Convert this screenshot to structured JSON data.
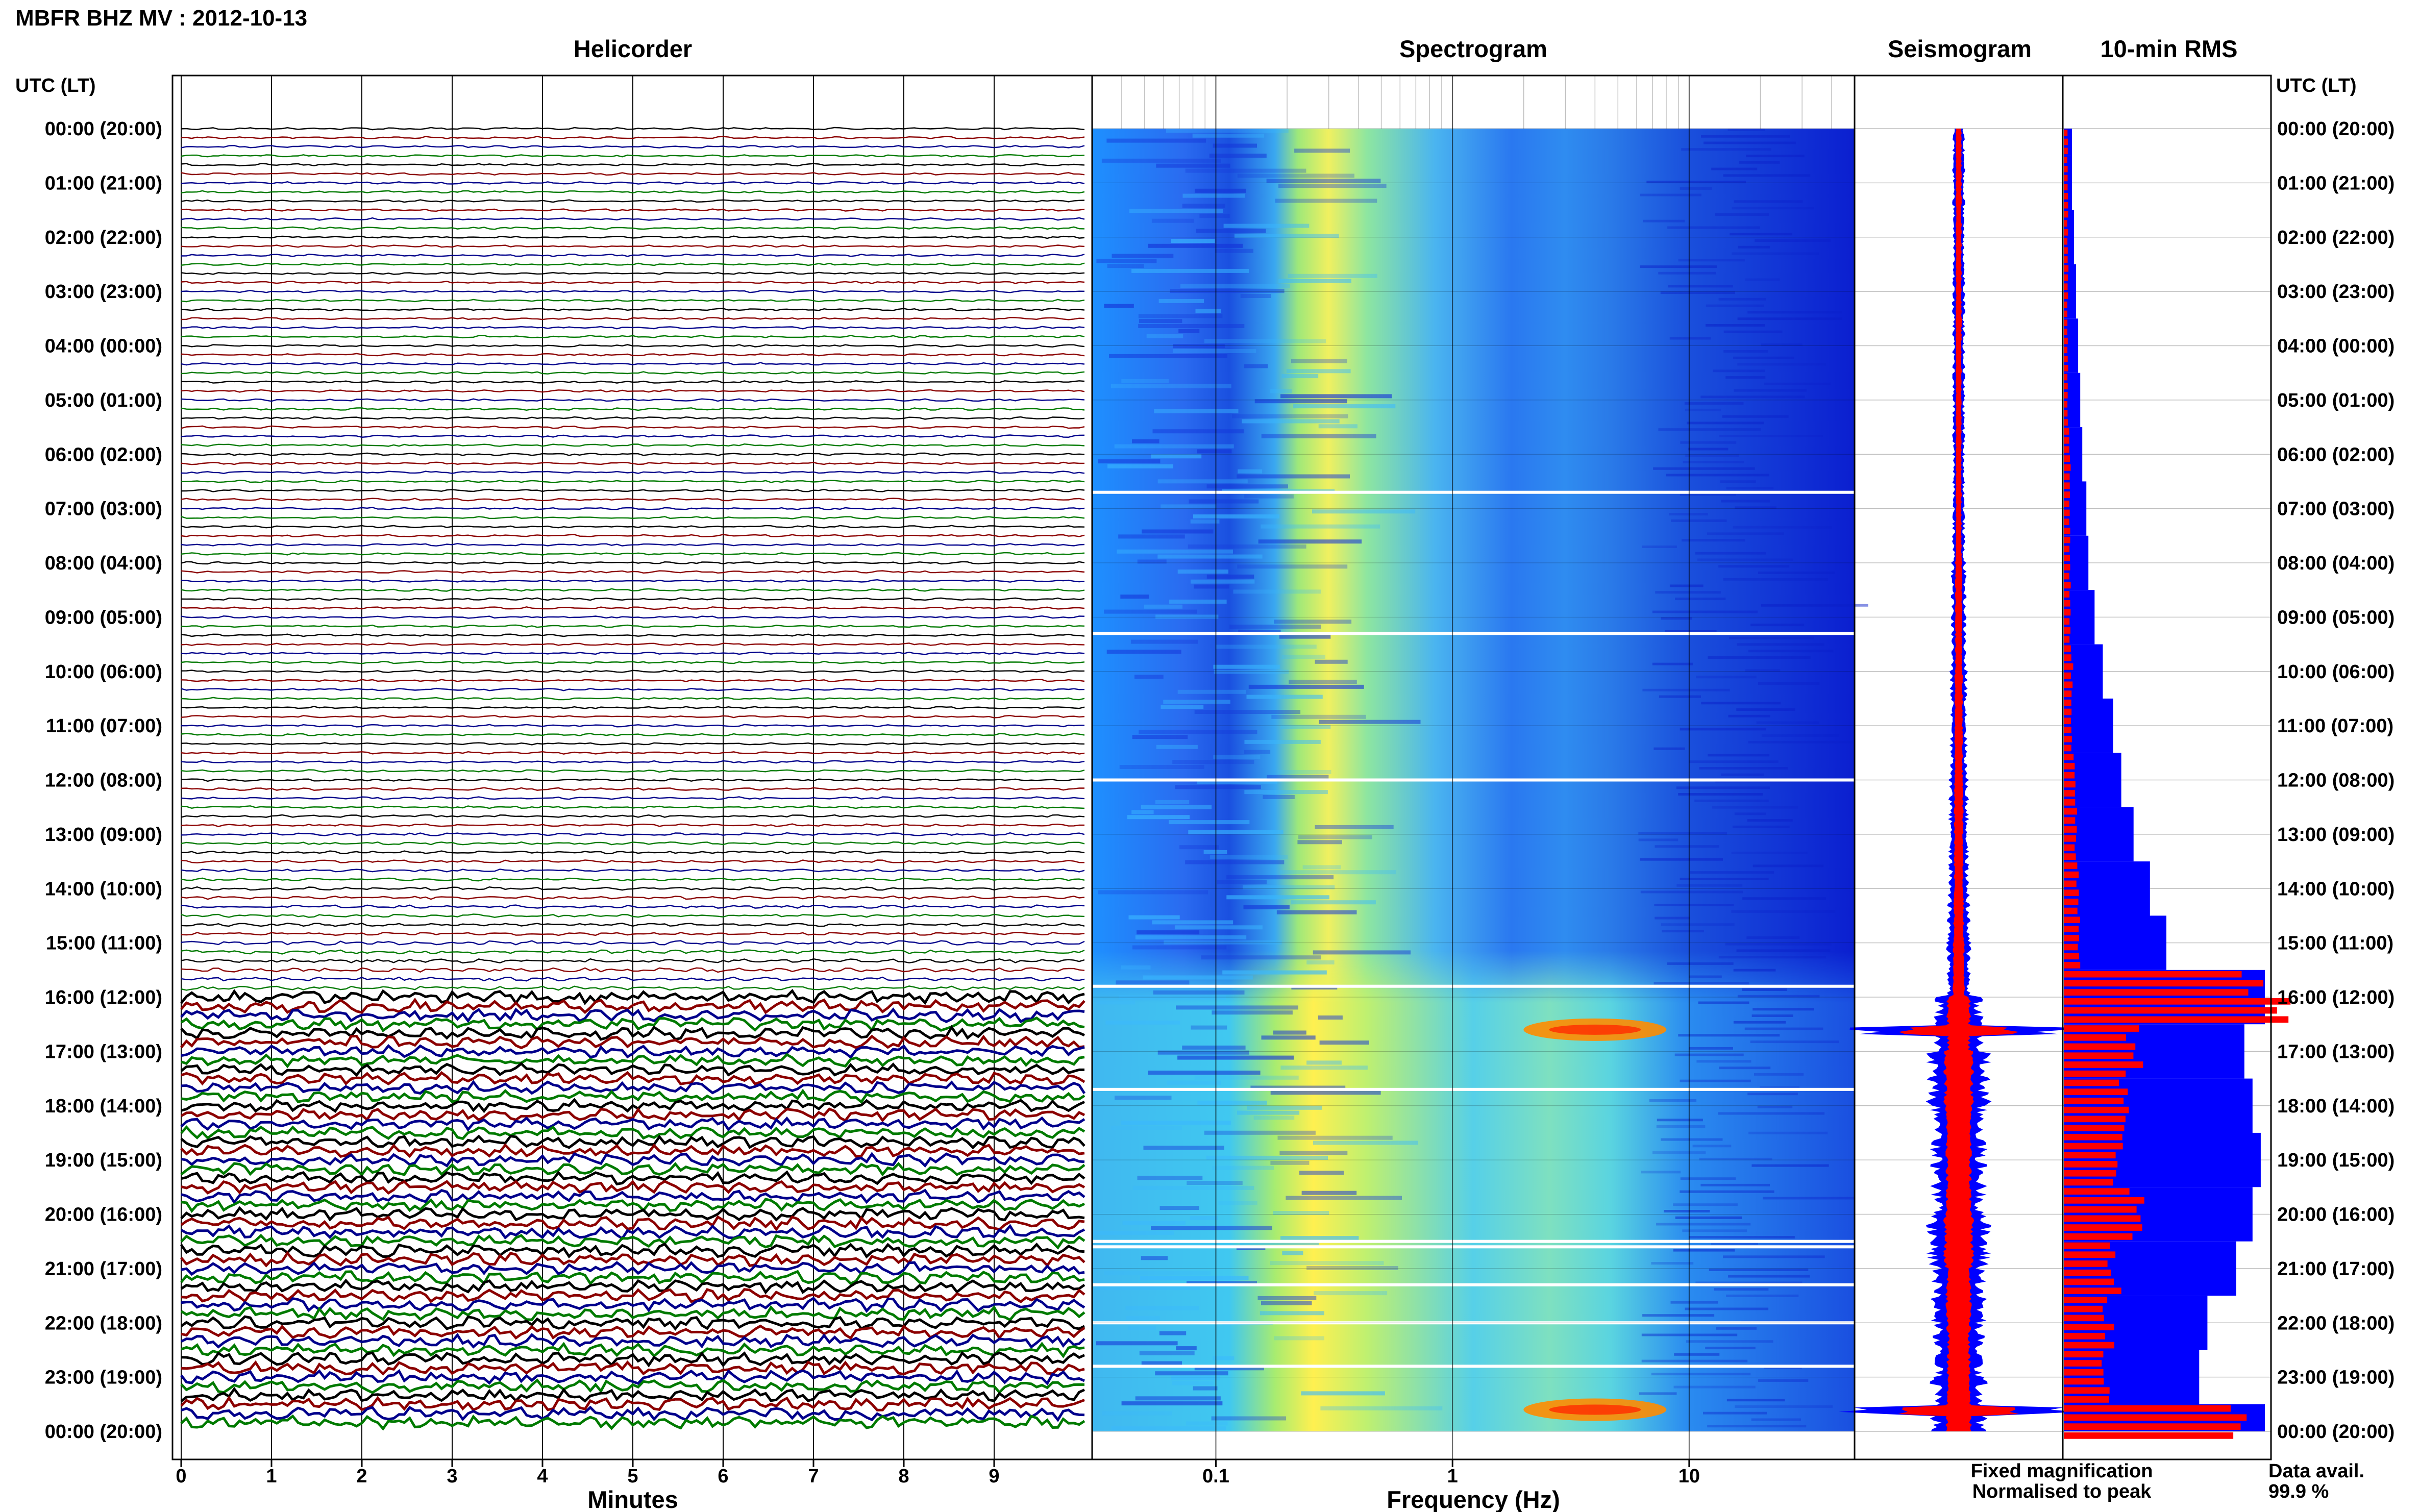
{
  "title": "MBFR BHZ MV : 2012-10-13",
  "panels": {
    "helicorder": "Helicorder",
    "spectrogram": "Spectrogram",
    "seismogram": "Seismogram",
    "rms": "10-min RMS"
  },
  "time_header_left": "UTC (LT)",
  "time_header_right": "UTC (LT)",
  "time_labels": [
    "00:00 (20:00)",
    "01:00 (21:00)",
    "02:00 (22:00)",
    "03:00 (23:00)",
    "04:00 (00:00)",
    "05:00 (01:00)",
    "06:00 (02:00)",
    "07:00 (03:00)",
    "08:00 (04:00)",
    "09:00 (05:00)",
    "10:00 (06:00)",
    "11:00 (07:00)",
    "12:00 (08:00)",
    "13:00 (09:00)",
    "14:00 (10:00)",
    "15:00 (11:00)",
    "16:00 (12:00)",
    "17:00 (13:00)",
    "18:00 (14:00)",
    "19:00 (15:00)",
    "20:00 (16:00)",
    "21:00 (17:00)",
    "22:00 (18:00)",
    "23:00 (19:00)",
    "00:00 (20:00)"
  ],
  "x_axes": {
    "minutes_label": "Minutes",
    "minutes_ticks": [
      "0",
      "1",
      "2",
      "3",
      "4",
      "5",
      "6",
      "7",
      "8",
      "9"
    ],
    "frequency_label": "Frequency (Hz)",
    "frequency_ticks": [
      "0.1",
      "1",
      "10"
    ]
  },
  "legend": {
    "fixed": "Fixed magnification",
    "normalised": "Normalised to peak",
    "fixed_color": "#0000ff",
    "normalised_color": "#ff0000"
  },
  "availability": {
    "label": "Data avail.",
    "value": "99.9 %"
  },
  "trace_colors": [
    "#000000",
    "#8b0000",
    "#00008b",
    "#007a00"
  ],
  "chart_data": [
    {
      "type": "line",
      "panel": "Helicorder",
      "xlabel": "Minutes",
      "xlim": [
        0,
        10
      ],
      "ylim": [
        0,
        24
      ],
      "y_unit": "hours UTC",
      "rows_per_hour": 6,
      "relative_amplitude_by_hour": [
        1,
        1,
        1,
        1,
        1,
        1,
        1,
        1,
        1,
        1,
        1,
        1,
        1.1,
        1.2,
        1.4,
        1.8,
        5.5,
        5,
        5,
        5.2,
        5.4,
        5.4,
        5.3,
        5.5
      ]
    },
    {
      "type": "heatmap",
      "panel": "Spectrogram",
      "xlabel": "Frequency (Hz)",
      "x_scale": "log",
      "xlim": [
        0.03,
        50
      ],
      "ylim": [
        0,
        24
      ],
      "peak_band_hz": [
        0.18,
        0.4
      ],
      "secondary_band_hz": [
        2,
        8
      ],
      "gap_hours": [
        6.7,
        9.3,
        12.0,
        15.8,
        17.7,
        20.5,
        20.6,
        21.3,
        22.0,
        22.8
      ]
    },
    {
      "type": "line",
      "panel": "Seismogram",
      "ylim": [
        0,
        24
      ],
      "events_hour": [
        16.6,
        23.6
      ],
      "envelope_by_hour": [
        0.05,
        0.05,
        0.05,
        0.05,
        0.05,
        0.05,
        0.05,
        0.05,
        0.06,
        0.06,
        0.07,
        0.07,
        0.08,
        0.08,
        0.09,
        0.1,
        0.2,
        0.25,
        0.22,
        0.22,
        0.25,
        0.22,
        0.2,
        0.22
      ]
    },
    {
      "type": "bar",
      "panel": "10-min RMS",
      "orientation": "horizontal",
      "ylim": [
        0,
        24
      ],
      "series": [
        {
          "name": "Fixed magnification",
          "color": "#0000ff",
          "values": [
            0.04,
            0.04,
            0.05,
            0.06,
            0.07,
            0.08,
            0.09,
            0.11,
            0.12,
            0.15,
            0.19,
            0.24,
            0.28,
            0.34,
            0.42,
            0.5,
            0.98,
            0.88,
            0.92,
            0.96,
            0.92,
            0.84,
            0.7,
            0.66,
            0.98
          ]
        },
        {
          "name": "Normalised to peak",
          "color": "#ff0000",
          "values": [
            0.02,
            0.02,
            0.02,
            0.02,
            0.02,
            0.02,
            0.03,
            0.03,
            0.03,
            0.03,
            0.04,
            0.04,
            0.05,
            0.06,
            0.07,
            0.08,
            1.0,
            0.35,
            0.28,
            0.28,
            0.35,
            0.25,
            0.22,
            0.2,
            0.82
          ]
        }
      ]
    }
  ]
}
